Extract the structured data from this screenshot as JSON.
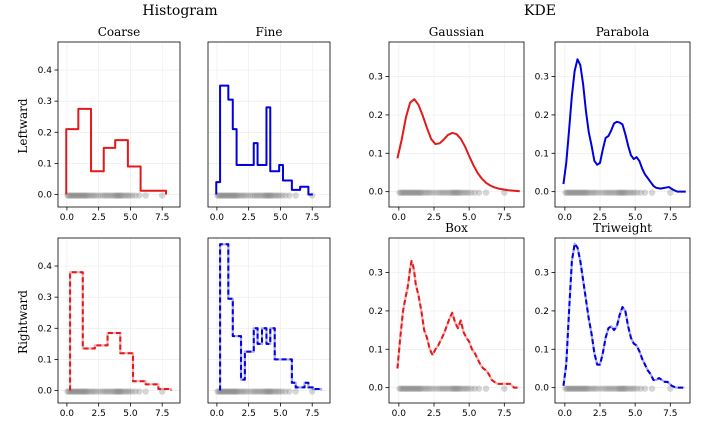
{
  "figure": {
    "section_titles": [
      "Histogram",
      "KDE"
    ],
    "row_labels": [
      "Leftward",
      "Rightward"
    ]
  },
  "colors": {
    "red": "#e31a1c",
    "blue": "#0000e0",
    "rug": "#808080",
    "grid": "#ebebeb"
  },
  "chart_data": [
    {
      "id": "hist-coarse-leftward",
      "type": "area",
      "title": "Coarse",
      "style": "solid",
      "color": "red",
      "kind": "histogram",
      "xlim": [
        -0.7,
        8.9
      ],
      "ylim": [
        -0.04,
        0.49
      ],
      "xticks": [
        0,
        2.5,
        5,
        7.5
      ],
      "xtick_labels": [
        "0.0",
        "2.5",
        "5.0",
        "7.5"
      ],
      "yticks": [
        0,
        0.1,
        0.2,
        0.3,
        0.4
      ],
      "ytick_labels": [
        "0.0",
        "0.1",
        "0.2",
        "0.3",
        "0.4"
      ],
      "bin_edges": [
        -0.05,
        0.9,
        1.9,
        2.9,
        3.8,
        4.8,
        5.8,
        6.8,
        7.8
      ],
      "values": [
        0.21,
        0.275,
        0.075,
        0.15,
        0.175,
        0.09,
        0.012,
        0.012
      ]
    },
    {
      "id": "hist-fine-leftward",
      "type": "area",
      "title": "Fine",
      "style": "solid",
      "color": "blue",
      "kind": "histogram",
      "xlim": [
        -0.7,
        8.9
      ],
      "ylim": [
        -0.04,
        0.49
      ],
      "xticks": [
        0,
        2.5,
        5,
        7.5
      ],
      "xtick_labels": [
        "0.0",
        "2.5",
        "5.0",
        "7.5"
      ],
      "yticks": [],
      "ytick_labels": [],
      "bin_edges": [
        -0.05,
        0.25,
        0.55,
        0.9,
        1.25,
        1.55,
        1.9,
        2.2,
        2.55,
        2.9,
        3.2,
        3.55,
        3.9,
        4.2,
        4.55,
        4.9,
        5.2,
        5.55,
        5.9,
        6.2,
        6.55,
        6.9,
        7.2,
        7.55
      ],
      "values": [
        0.04,
        0.35,
        0.35,
        0.305,
        0.21,
        0.095,
        0.095,
        0.095,
        0.095,
        0.165,
        0.095,
        0.095,
        0.28,
        0.075,
        0.075,
        0.095,
        0.045,
        0.045,
        0.015,
        0.015,
        0.025,
        0.025,
        0.0
      ]
    },
    {
      "id": "kde-gaussian-leftward",
      "type": "line",
      "title": "Gaussian",
      "style": "solid",
      "color": "red",
      "kind": "kde",
      "xlim": [
        -0.7,
        8.9
      ],
      "ylim": [
        -0.04,
        0.39
      ],
      "xticks": [
        0,
        2.5,
        5,
        7.5
      ],
      "xtick_labels": [
        "0.0",
        "2.5",
        "5.0",
        "7.5"
      ],
      "yticks": [
        0,
        0.1,
        0.2,
        0.3
      ],
      "ytick_labels": [
        "0.0",
        "0.1",
        "0.2",
        "0.3"
      ],
      "x": [
        -0.1,
        0.2,
        0.5,
        0.8,
        1.1,
        1.4,
        1.7,
        2.0,
        2.3,
        2.6,
        2.9,
        3.2,
        3.5,
        3.8,
        4.1,
        4.4,
        4.7,
        5.0,
        5.3,
        5.6,
        5.9,
        6.2,
        6.5,
        6.8,
        7.1,
        7.4,
        7.7,
        8.0,
        8.3,
        8.6
      ],
      "y": [
        0.087,
        0.135,
        0.193,
        0.232,
        0.241,
        0.226,
        0.198,
        0.166,
        0.137,
        0.124,
        0.126,
        0.136,
        0.148,
        0.153,
        0.15,
        0.138,
        0.118,
        0.093,
        0.069,
        0.049,
        0.034,
        0.023,
        0.016,
        0.011,
        0.008,
        0.006,
        0.004,
        0.003,
        0.002,
        0.001
      ]
    },
    {
      "id": "kde-parabola-leftward",
      "type": "line",
      "title": "Parabola",
      "style": "solid",
      "color": "blue",
      "kind": "kde",
      "xlim": [
        -0.7,
        8.9
      ],
      "ylim": [
        -0.04,
        0.39
      ],
      "xticks": [
        0,
        2.5,
        5,
        7.5
      ],
      "xtick_labels": [
        "0.0",
        "2.5",
        "5.0",
        "7.5"
      ],
      "yticks": [
        0,
        0.1,
        0.2,
        0.3
      ],
      "ytick_labels": [
        "0.0",
        "0.1",
        "0.2",
        "0.3"
      ],
      "x": [
        -0.1,
        0.1,
        0.3,
        0.5,
        0.7,
        0.9,
        1.1,
        1.3,
        1.5,
        1.7,
        1.9,
        2.1,
        2.3,
        2.5,
        2.7,
        2.9,
        3.1,
        3.3,
        3.5,
        3.7,
        3.9,
        4.1,
        4.3,
        4.5,
        4.7,
        4.9,
        5.1,
        5.3,
        5.5,
        5.7,
        5.9,
        6.1,
        6.3,
        6.5,
        6.8,
        7.1,
        7.4,
        7.7,
        8.0,
        8.3,
        8.6
      ],
      "y": [
        0.02,
        0.075,
        0.16,
        0.25,
        0.315,
        0.345,
        0.33,
        0.28,
        0.21,
        0.155,
        0.12,
        0.08,
        0.07,
        0.075,
        0.11,
        0.14,
        0.145,
        0.16,
        0.178,
        0.182,
        0.18,
        0.175,
        0.15,
        0.12,
        0.095,
        0.085,
        0.09,
        0.08,
        0.06,
        0.045,
        0.035,
        0.025,
        0.015,
        0.01,
        0.008,
        0.01,
        0.012,
        0.005,
        0.0,
        0.0,
        0.0
      ]
    },
    {
      "id": "hist-coarse-rightward",
      "type": "area",
      "title": "",
      "style": "dashed",
      "color": "red",
      "kind": "histogram",
      "xlim": [
        -0.7,
        8.9
      ],
      "ylim": [
        -0.04,
        0.49
      ],
      "xticks": [
        0,
        2.5,
        5,
        7.5
      ],
      "xtick_labels": [
        "0.0",
        "2.5",
        "5.0",
        "7.5"
      ],
      "yticks": [
        0,
        0.1,
        0.2,
        0.3,
        0.4
      ],
      "ytick_labels": [
        "0.0",
        "0.1",
        "0.2",
        "0.3",
        "0.4"
      ],
      "bin_edges": [
        0.25,
        1.25,
        2.2,
        3.2,
        4.2,
        5.2,
        6.2,
        7.2,
        8.2
      ],
      "values": [
        0.38,
        0.135,
        0.145,
        0.185,
        0.12,
        0.03,
        0.02,
        0.005
      ]
    },
    {
      "id": "hist-fine-rightward",
      "type": "area",
      "title": "",
      "style": "dashed",
      "color": "blue",
      "kind": "histogram",
      "xlim": [
        -0.7,
        8.9
      ],
      "ylim": [
        -0.04,
        0.49
      ],
      "xticks": [
        0,
        2.5,
        5,
        7.5
      ],
      "xtick_labels": [
        "0.0",
        "2.5",
        "5.0",
        "7.5"
      ],
      "yticks": [],
      "ytick_labels": [],
      "bin_edges": [
        0.25,
        0.55,
        0.9,
        1.25,
        1.55,
        1.9,
        2.2,
        2.55,
        2.9,
        3.2,
        3.55,
        3.9,
        4.2,
        4.55,
        4.9,
        5.2,
        5.55,
        5.9,
        6.2,
        6.55,
        6.9,
        7.2,
        7.55,
        7.9,
        8.2
      ],
      "values": [
        0.47,
        0.47,
        0.295,
        0.175,
        0.175,
        0.035,
        0.125,
        0.125,
        0.2,
        0.15,
        0.2,
        0.15,
        0.2,
        0.1,
        0.1,
        0.1,
        0.1,
        0.025,
        0.01,
        0.01,
        0.025,
        0.01,
        0.005,
        0.005
      ]
    },
    {
      "id": "kde-box-rightward",
      "type": "line",
      "title": "Box",
      "style": "dashed",
      "color": "red",
      "kind": "kde",
      "xlim": [
        -0.7,
        8.9
      ],
      "ylim": [
        -0.04,
        0.39
      ],
      "xticks": [
        0,
        2.5,
        5,
        7.5
      ],
      "xtick_labels": [
        "0.0",
        "2.5",
        "5.0",
        "7.5"
      ],
      "yticks": [
        0,
        0.1,
        0.2,
        0.3
      ],
      "ytick_labels": [
        "0.0",
        "0.1",
        "0.2",
        "0.3"
      ],
      "x": [
        -0.1,
        0.1,
        0.3,
        0.5,
        0.6,
        0.7,
        0.8,
        0.9,
        1.0,
        1.1,
        1.2,
        1.4,
        1.6,
        1.8,
        2.0,
        2.2,
        2.4,
        2.6,
        2.8,
        3.0,
        3.2,
        3.4,
        3.6,
        3.8,
        4.0,
        4.2,
        4.4,
        4.6,
        4.8,
        5.0,
        5.2,
        5.4,
        5.6,
        5.8,
        6.0,
        6.2,
        6.4,
        6.6,
        6.8,
        7.0,
        7.3,
        7.6,
        7.9,
        8.2,
        8.5
      ],
      "y": [
        0.05,
        0.13,
        0.2,
        0.24,
        0.255,
        0.28,
        0.31,
        0.33,
        0.32,
        0.3,
        0.27,
        0.24,
        0.2,
        0.15,
        0.13,
        0.1,
        0.085,
        0.1,
        0.11,
        0.125,
        0.14,
        0.16,
        0.18,
        0.195,
        0.17,
        0.155,
        0.175,
        0.145,
        0.13,
        0.12,
        0.1,
        0.09,
        0.075,
        0.06,
        0.05,
        0.045,
        0.035,
        0.02,
        0.015,
        0.01,
        0.01,
        0.01,
        0.01,
        0.0,
        0.0
      ]
    },
    {
      "id": "kde-triweight-rightward",
      "type": "line",
      "title": "Triweight",
      "style": "dashed",
      "color": "blue",
      "kind": "kde",
      "xlim": [
        -0.7,
        8.9
      ],
      "ylim": [
        -0.04,
        0.39
      ],
      "xticks": [
        0,
        2.5,
        5,
        7.5
      ],
      "xtick_labels": [
        "0.0",
        "2.5",
        "5.0",
        "7.5"
      ],
      "yticks": [
        0,
        0.1,
        0.2,
        0.3
      ],
      "ytick_labels": [
        "0.0",
        "0.1",
        "0.2",
        "0.3"
      ],
      "x": [
        -0.1,
        0.1,
        0.3,
        0.5,
        0.7,
        0.9,
        1.1,
        1.3,
        1.5,
        1.7,
        1.9,
        2.1,
        2.3,
        2.5,
        2.7,
        2.9,
        3.1,
        3.3,
        3.5,
        3.7,
        3.9,
        4.1,
        4.3,
        4.5,
        4.7,
        4.9,
        5.1,
        5.3,
        5.5,
        5.7,
        5.9,
        6.1,
        6.3,
        6.5,
        6.7,
        6.9,
        7.1,
        7.3,
        7.6,
        7.9,
        8.2,
        8.5
      ],
      "y": [
        0.005,
        0.06,
        0.2,
        0.33,
        0.375,
        0.365,
        0.33,
        0.28,
        0.23,
        0.18,
        0.14,
        0.09,
        0.06,
        0.06,
        0.09,
        0.13,
        0.155,
        0.16,
        0.15,
        0.16,
        0.19,
        0.21,
        0.2,
        0.16,
        0.13,
        0.115,
        0.11,
        0.095,
        0.075,
        0.06,
        0.045,
        0.035,
        0.02,
        0.02,
        0.025,
        0.02,
        0.015,
        0.015,
        0.005,
        0.0,
        0.0,
        0.0
      ]
    }
  ],
  "rug_x": [
    0.05,
    0.15,
    0.25,
    0.35,
    0.45,
    0.55,
    0.65,
    0.75,
    0.85,
    0.95,
    1.05,
    1.15,
    1.25,
    1.35,
    1.45,
    1.55,
    1.65,
    1.8,
    1.95,
    2.1,
    2.25,
    2.45,
    2.65,
    2.85,
    3.0,
    3.15,
    3.3,
    3.45,
    3.6,
    3.75,
    3.85,
    3.95,
    4.05,
    4.15,
    4.25,
    4.35,
    4.5,
    4.65,
    4.8,
    4.95,
    5.15,
    5.4,
    5.7,
    6.2,
    7.5
  ]
}
